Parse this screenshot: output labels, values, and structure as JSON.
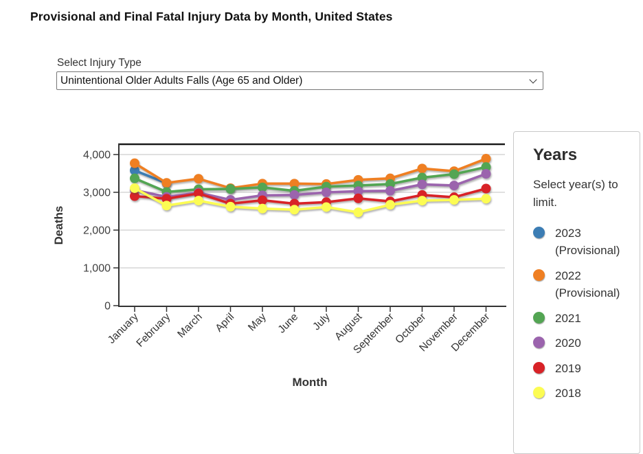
{
  "page": {
    "title": "Provisional and Final Fatal Injury Data by Month, United States"
  },
  "injury_select": {
    "label": "Select Injury Type",
    "value": "Unintentional Older Adults Falls (Age 65 and Older)"
  },
  "years_panel": {
    "title": "Years",
    "subtitle": "Select year(s) to limit."
  },
  "chart_data": {
    "type": "line",
    "title": "",
    "xlabel": "Month",
    "ylabel": "Deaths",
    "ylim": [
      0,
      4000
    ],
    "yticks": [
      0,
      1000,
      2000,
      3000,
      4000
    ],
    "grid": true,
    "legend_position": "right",
    "categories": [
      "January",
      "February",
      "March",
      "April",
      "May",
      "June",
      "July",
      "August",
      "September",
      "October",
      "November",
      "December"
    ],
    "series": [
      {
        "name": "2023 (Provisional)",
        "color": "#3c7db4",
        "values": [
          3580,
          3240
        ]
      },
      {
        "name": "2022 (Provisional)",
        "color": "#ef7f22",
        "values": [
          3770,
          3250,
          3360,
          3110,
          3230,
          3230,
          3220,
          3330,
          3370,
          3630,
          3560,
          3890
        ]
      },
      {
        "name": "2021",
        "color": "#53a553",
        "values": [
          3370,
          3010,
          3080,
          3090,
          3130,
          3040,
          3150,
          3180,
          3220,
          3390,
          3480,
          3670
        ]
      },
      {
        "name": "2020",
        "color": "#9b64ad",
        "values": [
          3060,
          2880,
          2990,
          2800,
          2920,
          2930,
          3000,
          3030,
          3040,
          3210,
          3180,
          3490
        ]
      },
      {
        "name": "2019",
        "color": "#d82227",
        "values": [
          2900,
          2830,
          2970,
          2700,
          2790,
          2700,
          2740,
          2840,
          2760,
          2930,
          2870,
          3100
        ]
      },
      {
        "name": "2018",
        "color": "#fcfc53",
        "values": [
          3110,
          2650,
          2780,
          2620,
          2570,
          2540,
          2610,
          2470,
          2670,
          2780,
          2800,
          2830
        ]
      }
    ]
  }
}
